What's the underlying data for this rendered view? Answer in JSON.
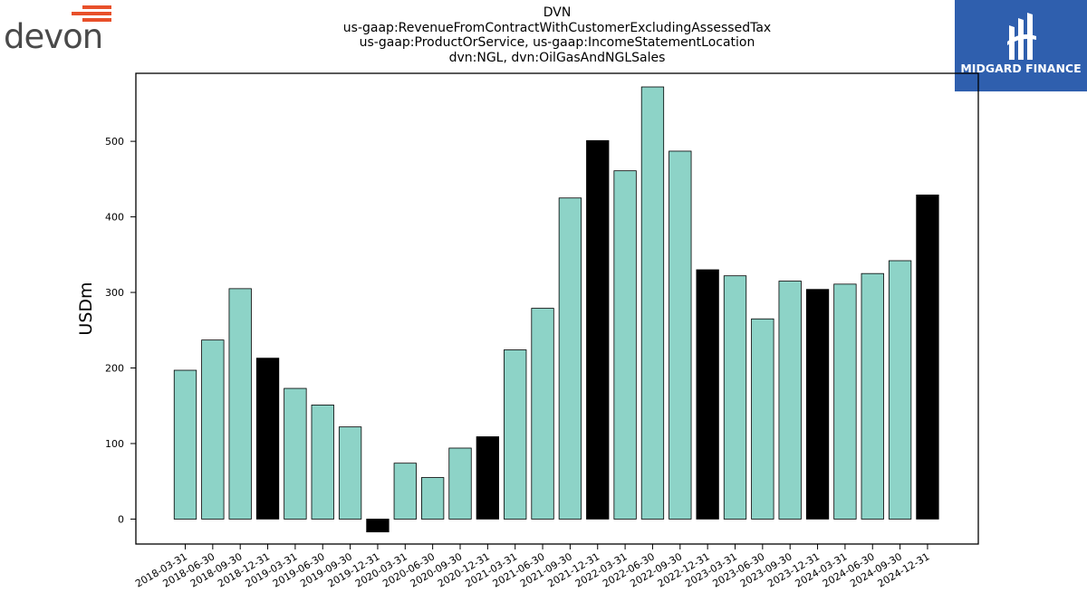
{
  "header": {
    "title_lines": [
      "DVN",
      "us-gaap:RevenueFromContractWithCustomerExcludingAssessedTax",
      "us-gaap:ProductOrService, us-gaap:IncomeStatementLocation",
      "dvn:NGL, dvn:OilGasAndNGLSales"
    ]
  },
  "logos": {
    "left_logo_text": "devon",
    "right_logo_text": "MIDGARD FINANCE"
  },
  "colors": {
    "quarterly_bar": "#8dd3c7",
    "annual_bar": "#000000",
    "devon_orange": "#e8502a",
    "midgard_blue": "#2f5fae"
  },
  "chart_data": {
    "type": "bar",
    "title": "DVN",
    "ylabel": "USDm",
    "xlabel": "",
    "ylim": [
      -33,
      590
    ],
    "yticks": [
      0,
      100,
      200,
      300,
      400,
      500
    ],
    "grid": false,
    "categories": [
      "2018-03-31",
      "2018-06-30",
      "2018-09-30",
      "2018-12-31",
      "2019-03-31",
      "2019-06-30",
      "2019-09-30",
      "2019-12-31",
      "2020-03-31",
      "2020-06-30",
      "2020-09-30",
      "2020-12-31",
      "2021-03-31",
      "2021-06-30",
      "2021-09-30",
      "2021-12-31",
      "2022-03-31",
      "2022-06-30",
      "2022-09-30",
      "2022-12-31",
      "2023-03-31",
      "2023-06-30",
      "2023-09-30",
      "2023-12-31",
      "2024-03-31",
      "2024-06-30",
      "2024-09-30",
      "2024-12-31"
    ],
    "values": [
      197,
      237,
      305,
      213,
      173,
      151,
      122,
      -17,
      74,
      55,
      94,
      109,
      224,
      279,
      425,
      501,
      461,
      572,
      487,
      330,
      322,
      265,
      315,
      304,
      311,
      325,
      342,
      429
    ],
    "annual_flags": [
      false,
      false,
      false,
      true,
      false,
      false,
      false,
      true,
      false,
      false,
      false,
      true,
      false,
      false,
      false,
      true,
      false,
      false,
      false,
      true,
      false,
      false,
      false,
      true,
      false,
      false,
      false,
      true
    ]
  }
}
